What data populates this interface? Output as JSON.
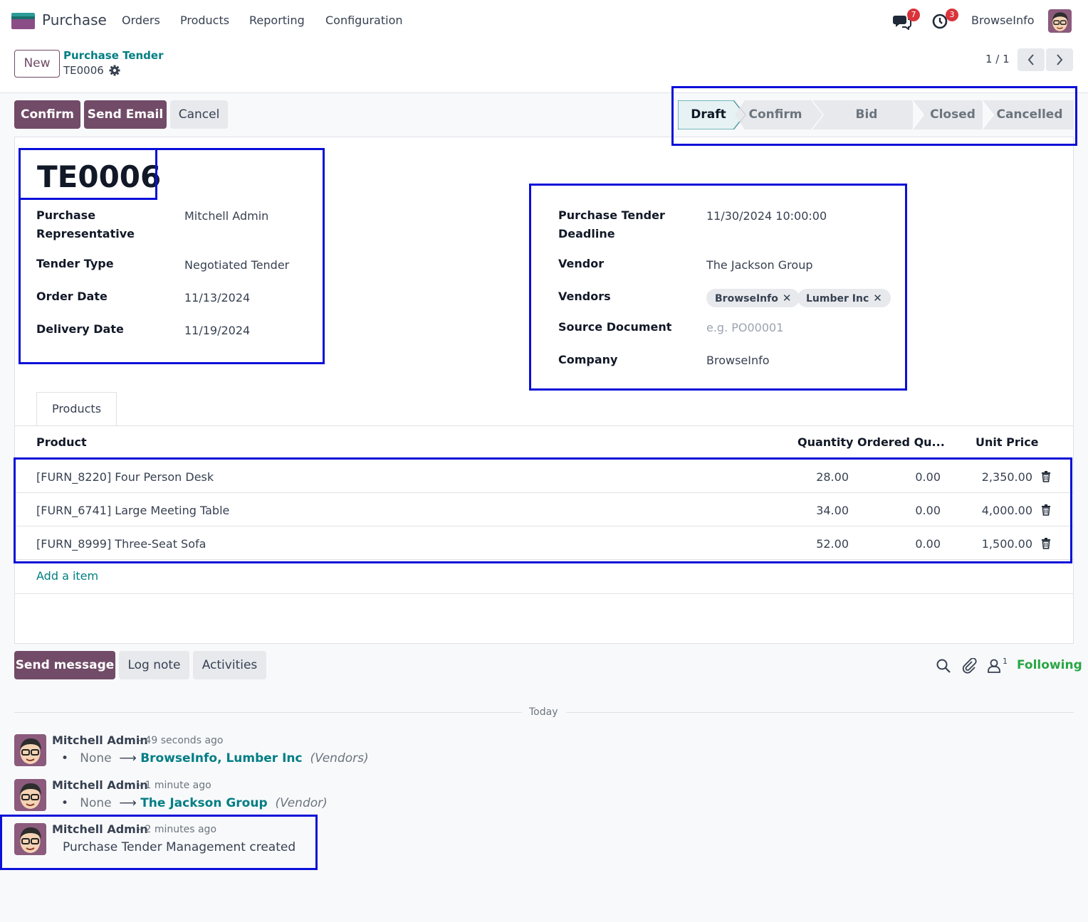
{
  "topbar": {
    "app_name": "Purchase",
    "menu": [
      "Orders",
      "Products",
      "Reporting",
      "Configuration"
    ],
    "messages_badge": "7",
    "activities_badge": "3",
    "company": "BrowseInfo"
  },
  "control_panel": {
    "new_label": "New",
    "breadcrumb_parent": "Purchase Tender",
    "breadcrumb_current": "TE0006",
    "pager": "1 / 1"
  },
  "actions": {
    "confirm": "Confirm",
    "send_email": "Send Email",
    "cancel": "Cancel"
  },
  "statusbar": {
    "stages": [
      "Draft",
      "Confirm",
      "Bid Selection",
      "Closed",
      "Cancelled"
    ],
    "active": "Draft"
  },
  "record": {
    "title": "TE0006",
    "left_fields": [
      {
        "label": "Purchase Representative",
        "value": "Mitchell Admin"
      },
      {
        "label": "Tender Type",
        "value": "Negotiated Tender"
      },
      {
        "label": "Order Date",
        "value": "11/13/2024"
      },
      {
        "label": "Delivery Date",
        "value": "11/19/2024"
      }
    ],
    "right_fields": {
      "deadline_label": "Purchase Tender Deadline",
      "deadline_value": "11/30/2024 10:00:00",
      "vendor_label": "Vendor",
      "vendor_value": "The Jackson Group",
      "vendors_label": "Vendors",
      "vendors_tags": [
        "BrowseInfo",
        "Lumber Inc"
      ],
      "source_label": "Source Document",
      "source_placeholder": "e.g. PO00001",
      "company_label": "Company",
      "company_value": "BrowseInfo"
    }
  },
  "tabs": [
    "Products"
  ],
  "lines": {
    "headers": [
      "Product",
      "Quantity",
      "Ordered Qu...",
      "Unit Price"
    ],
    "rows": [
      {
        "product": "[FURN_8220] Four Person Desk",
        "quantity": "28.00",
        "ordered": "0.00",
        "price": "2,350.00"
      },
      {
        "product": "[FURN_6741] Large Meeting Table",
        "quantity": "34.00",
        "ordered": "0.00",
        "price": "4,000.00"
      },
      {
        "product": "[FURN_8999] Three-Seat Sofa",
        "quantity": "52.00",
        "ordered": "0.00",
        "price": "1,500.00"
      }
    ],
    "add_item": "Add a item"
  },
  "chatter": {
    "send_message": "Send message",
    "log_note": "Log note",
    "activities": "Activities",
    "followers_count": "1",
    "following": "Following",
    "date_separator": "Today",
    "messages": [
      {
        "author": "Mitchell Admin",
        "time": "- 49 seconds ago",
        "old": "None",
        "new": "BrowseInfo, Lumber Inc",
        "field": "(Vendors)"
      },
      {
        "author": "Mitchell Admin",
        "time": "- 1 minute ago",
        "old": "None",
        "new": "The Jackson Group",
        "field": "(Vendor)"
      },
      {
        "author": "Mitchell Admin",
        "time": "- 2 minutes ago",
        "body": "Purchase Tender Management created"
      }
    ]
  },
  "colors": {
    "primary": "#714b67",
    "link": "#017e84",
    "highlight": "#0a10d8",
    "following": "#28a745",
    "badge": "#d9343b"
  }
}
